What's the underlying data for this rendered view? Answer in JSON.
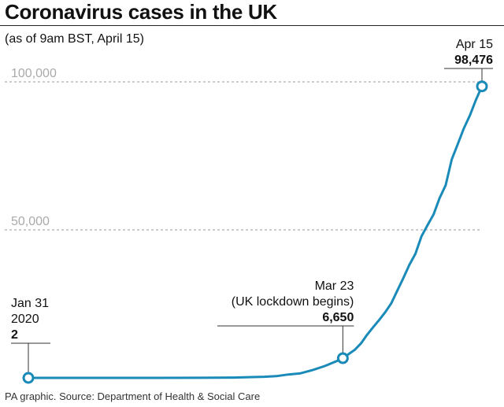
{
  "chart_data": {
    "type": "line",
    "title": "Coronavirus cases in the UK",
    "subtitle": "(as of 9am BST, April 15)",
    "source": "PA graphic. Source: Department of Health & Social Care",
    "x_start": "2020-01-31",
    "x_end": "2020-04-15",
    "ylim": [
      0,
      100000
    ],
    "yticks": [
      {
        "value": 100000,
        "label": "100,000"
      },
      {
        "value": 50000,
        "label": "50,000"
      }
    ],
    "grid": true,
    "line_color": "#1a8ab8",
    "points": [
      {
        "x": "2020-01-31",
        "y": 2
      },
      {
        "x": "2020-02-07",
        "y": 3
      },
      {
        "x": "2020-02-14",
        "y": 9
      },
      {
        "x": "2020-02-21",
        "y": 9
      },
      {
        "x": "2020-02-28",
        "y": 20
      },
      {
        "x": "2020-03-02",
        "y": 40
      },
      {
        "x": "2020-03-05",
        "y": 115
      },
      {
        "x": "2020-03-08",
        "y": 273
      },
      {
        "x": "2020-03-10",
        "y": 373
      },
      {
        "x": "2020-03-12",
        "y": 590
      },
      {
        "x": "2020-03-14",
        "y": 1140
      },
      {
        "x": "2020-03-16",
        "y": 1543
      },
      {
        "x": "2020-03-18",
        "y": 2626
      },
      {
        "x": "2020-03-20",
        "y": 3983
      },
      {
        "x": "2020-03-22",
        "y": 5683
      },
      {
        "x": "2020-03-23",
        "y": 6650
      },
      {
        "x": "2020-03-24",
        "y": 8077
      },
      {
        "x": "2020-03-25",
        "y": 9529
      },
      {
        "x": "2020-03-26",
        "y": 11658
      },
      {
        "x": "2020-03-27",
        "y": 14543
      },
      {
        "x": "2020-03-28",
        "y": 17089
      },
      {
        "x": "2020-03-29",
        "y": 19522
      },
      {
        "x": "2020-03-30",
        "y": 22141
      },
      {
        "x": "2020-03-31",
        "y": 25150
      },
      {
        "x": "2020-04-01",
        "y": 29474
      },
      {
        "x": "2020-04-02",
        "y": 33718
      },
      {
        "x": "2020-04-03",
        "y": 38168
      },
      {
        "x": "2020-04-04",
        "y": 41903
      },
      {
        "x": "2020-04-05",
        "y": 47806
      },
      {
        "x": "2020-04-06",
        "y": 51608
      },
      {
        "x": "2020-04-07",
        "y": 55242
      },
      {
        "x": "2020-04-08",
        "y": 60733
      },
      {
        "x": "2020-04-09",
        "y": 65077
      },
      {
        "x": "2020-04-10",
        "y": 73758
      },
      {
        "x": "2020-04-11",
        "y": 78991
      },
      {
        "x": "2020-04-12",
        "y": 84279
      },
      {
        "x": "2020-04-13",
        "y": 88621
      },
      {
        "x": "2020-04-14",
        "y": 93873
      },
      {
        "x": "2020-04-15",
        "y": 98476
      }
    ],
    "annotations": [
      {
        "x": "2020-01-31",
        "y": 2,
        "lines": [
          "Jan 31",
          "2020"
        ],
        "value": "2",
        "align": "left"
      },
      {
        "x": "2020-03-23",
        "y": 6650,
        "lines": [
          "Mar 23",
          "(UK lockdown begins)"
        ],
        "value": "6,650",
        "align": "right"
      },
      {
        "x": "2020-04-15",
        "y": 98476,
        "lines": [
          "Apr 15"
        ],
        "value": "98,476",
        "align": "right"
      }
    ]
  }
}
